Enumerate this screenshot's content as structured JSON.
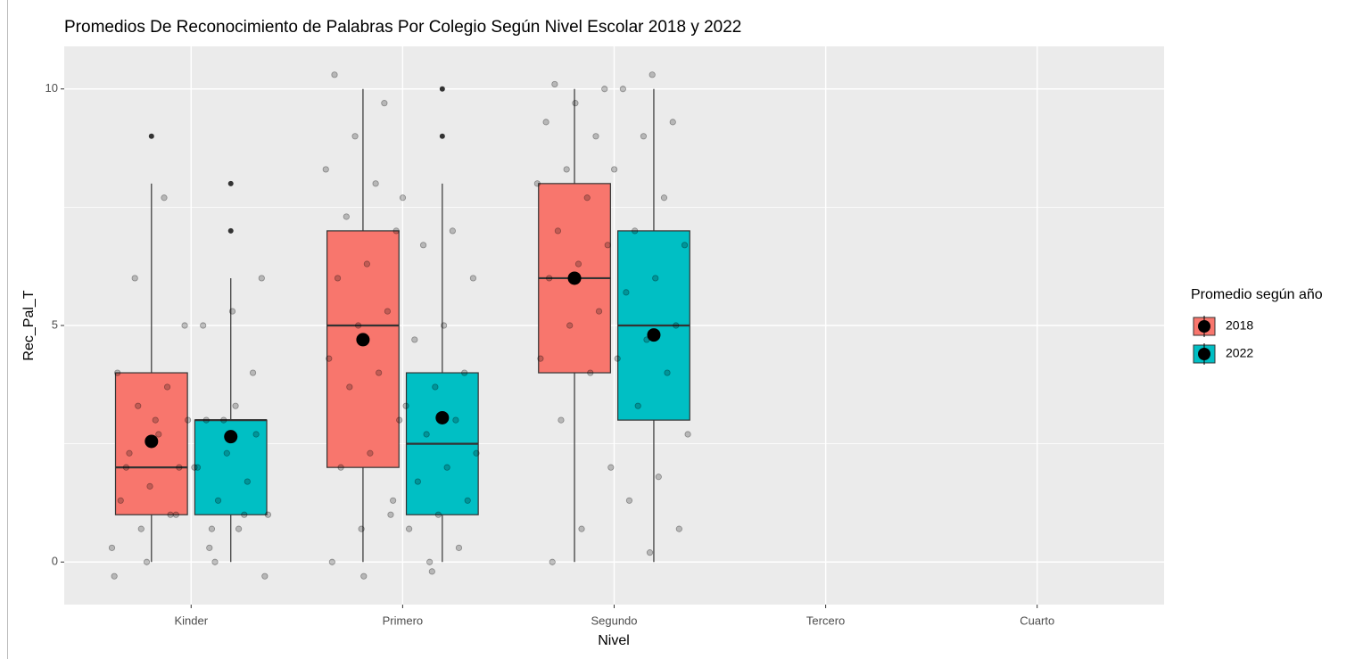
{
  "chart_data": {
    "type": "boxplot",
    "title": "Promedios De Reconocimiento de Palabras Por Colegio Según Nivel Escolar 2018 y 2022",
    "x_label": "Nivel",
    "y_label": "Rec_Pal_T",
    "legend_title": "Promedio según año",
    "legend_position": "right",
    "grid": true,
    "categories": [
      "Kinder",
      "Primero",
      "Segundo",
      "Tercero",
      "Cuarto"
    ],
    "ylim": [
      -0.9,
      10.9
    ],
    "yticks": [
      0,
      5,
      10
    ],
    "yminor": [
      2.5,
      7.5
    ],
    "series": [
      {
        "name": "2018",
        "color": "#F8766D",
        "min": [
          0,
          0,
          0,
          null,
          null
        ],
        "q1": [
          1,
          2,
          4,
          null,
          null
        ],
        "median": [
          2,
          5,
          6,
          null,
          null
        ],
        "q3": [
          4,
          7,
          8,
          null,
          null
        ],
        "max": [
          8,
          10,
          10,
          null,
          null
        ],
        "mean": [
          2.55,
          4.7,
          6.0,
          null,
          null
        ],
        "outliers": [
          [
            9
          ],
          [],
          [],
          [],
          []
        ],
        "points": [
          [
            0.3,
            0.7,
            1,
            1.3,
            1.6,
            2,
            2.3,
            2.7,
            3,
            3.3,
            3.7,
            4,
            0,
            1,
            2,
            3,
            5,
            6,
            7.7,
            -0.3
          ],
          [
            0,
            0.7,
            1,
            2,
            2.3,
            3,
            3.7,
            4,
            4.3,
            5,
            5.3,
            6,
            6.3,
            7,
            7.3,
            8,
            8.3,
            9,
            9.7,
            10.3,
            -0.3,
            1.3
          ],
          [
            0,
            0.7,
            2,
            3,
            4,
            4.3,
            5,
            5.3,
            6,
            6.3,
            6.7,
            7,
            7.7,
            8,
            8.3,
            9,
            9.3,
            9.7,
            10,
            10.1
          ],
          [],
          []
        ]
      },
      {
        "name": "2022",
        "color": "#00BFC4",
        "min": [
          0,
          0,
          0,
          null,
          null
        ],
        "q1": [
          1,
          1,
          3,
          null,
          null
        ],
        "median": [
          3,
          2.5,
          5,
          null,
          null
        ],
        "q3": [
          3,
          4,
          7,
          null,
          null
        ],
        "max": [
          6,
          8,
          10,
          null,
          null
        ],
        "mean": [
          2.65,
          3.05,
          4.8,
          null,
          null
        ],
        "outliers": [
          [
            7,
            8
          ],
          [
            9,
            10
          ],
          [],
          [],
          []
        ],
        "points": [
          [
            0.3,
            0.7,
            1,
            1.3,
            1.7,
            2,
            2.3,
            2.7,
            3,
            3.3,
            -0.3,
            0,
            1,
            2,
            3,
            4,
            5,
            5.3,
            6,
            0.7
          ],
          [
            0,
            0.3,
            0.7,
            1,
            1.3,
            1.7,
            2,
            2.3,
            2.7,
            3,
            3.3,
            3.7,
            4,
            4.7,
            5,
            6,
            6.7,
            7,
            7.7,
            -0.2
          ],
          [
            0.2,
            0.7,
            1.3,
            1.8,
            2.7,
            3.3,
            4,
            4.3,
            4.7,
            5,
            5.7,
            6,
            6.7,
            7,
            7.7,
            8.3,
            9,
            9.3,
            10,
            10.3
          ],
          [],
          []
        ]
      }
    ]
  }
}
